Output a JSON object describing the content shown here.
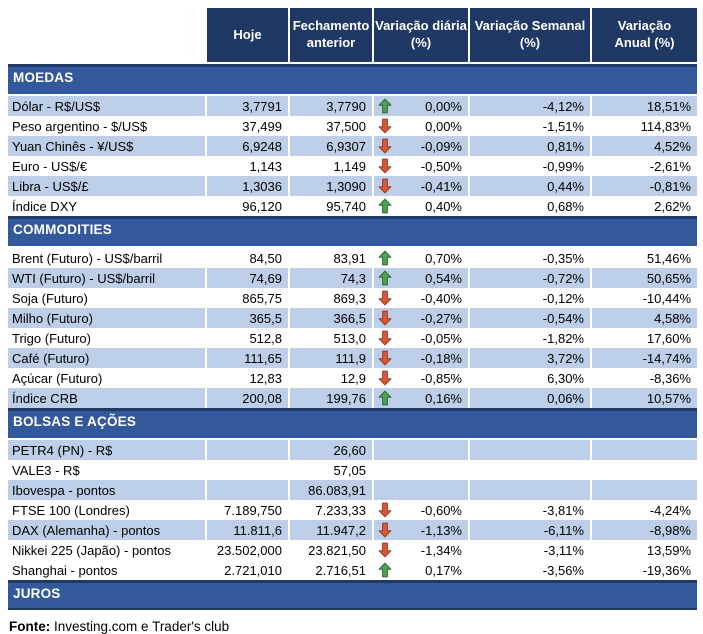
{
  "colors": {
    "header_bg": "#1F3864",
    "section_bg": "#33589B",
    "stripe": "#BCCEE8",
    "arrow_up_fill": "#4EA053",
    "arrow_up_stroke": "#2F6B35",
    "arrow_down_fill": "#D6573C",
    "arrow_down_stroke": "#9C3A20"
  },
  "header": {
    "columns": [
      {
        "line1": "Hoje",
        "line2": ""
      },
      {
        "line1": "Fechamento",
        "line2": "anterior"
      },
      {
        "line1": "Variação diária",
        "line2": "(%)"
      },
      {
        "line1": "Variação Semanal",
        "line2": "(%)"
      },
      {
        "line1": "Variação",
        "line2": "Anual (%)"
      }
    ]
  },
  "sections": [
    {
      "title": "MOEDAS",
      "rows": [
        {
          "label": "Dólar - R$/US$",
          "hoje": "3,7791",
          "fechamento": "3,7790",
          "arrow": "up",
          "diaria": "0,00%",
          "semanal": "-4,12%",
          "anual": "18,51%",
          "striped": true
        },
        {
          "label": "Peso argentino - $/US$",
          "hoje": "37,499",
          "fechamento": "37,500",
          "arrow": "down",
          "diaria": "0,00%",
          "semanal": "-1,51%",
          "anual": "114,83%",
          "striped": false
        },
        {
          "label": "Yuan Chinês - ¥/US$",
          "hoje": "6,9248",
          "fechamento": "6,9307",
          "arrow": "down",
          "diaria": "-0,09%",
          "semanal": "0,81%",
          "anual": "4,52%",
          "striped": true
        },
        {
          "label": "Euro - US$/€",
          "hoje": "1,143",
          "fechamento": "1,149",
          "arrow": "down",
          "diaria": "-0,50%",
          "semanal": "-0,99%",
          "anual": "-2,61%",
          "striped": false
        },
        {
          "label": "Libra - US$/£",
          "hoje": "1,3036",
          "fechamento": "1,3090",
          "arrow": "down",
          "diaria": "-0,41%",
          "semanal": "0,44%",
          "anual": "-0,81%",
          "striped": true
        },
        {
          "label": "Índice DXY",
          "hoje": "96,120",
          "fechamento": "95,740",
          "arrow": "up",
          "diaria": "0,40%",
          "semanal": "0,68%",
          "anual": "2,62%",
          "striped": false
        }
      ]
    },
    {
      "title": "COMMODITIES",
      "rows": [
        {
          "label": "Brent (Futuro) - US$/barril",
          "hoje": "84,50",
          "fechamento": "83,91",
          "arrow": "up",
          "diaria": "0,70%",
          "semanal": "-0,35%",
          "anual": "51,46%",
          "striped": false
        },
        {
          "label": "WTI (Futuro) - US$/barril",
          "hoje": "74,69",
          "fechamento": "74,3",
          "arrow": "up",
          "diaria": "0,54%",
          "semanal": "-0,72%",
          "anual": "50,65%",
          "striped": true
        },
        {
          "label": "Soja (Futuro)",
          "hoje": "865,75",
          "fechamento": "869,3",
          "arrow": "down",
          "diaria": "-0,40%",
          "semanal": "-0,12%",
          "anual": "-10,44%",
          "striped": false
        },
        {
          "label": "Milho (Futuro)",
          "hoje": "365,5",
          "fechamento": "366,5",
          "arrow": "down",
          "diaria": "-0,27%",
          "semanal": "-0,54%",
          "anual": "4,58%",
          "striped": true
        },
        {
          "label": "Trigo (Futuro)",
          "hoje": "512,8",
          "fechamento": "513,0",
          "arrow": "down",
          "diaria": "-0,05%",
          "semanal": "-1,82%",
          "anual": "17,60%",
          "striped": false
        },
        {
          "label": "Café (Futuro)",
          "hoje": "111,65",
          "fechamento": "111,9",
          "arrow": "down",
          "diaria": "-0,18%",
          "semanal": "3,72%",
          "anual": "-14,74%",
          "striped": true
        },
        {
          "label": "Açúcar (Futuro)",
          "hoje": "12,83",
          "fechamento": "12,9",
          "arrow": "down",
          "diaria": "-0,85%",
          "semanal": "6,30%",
          "anual": "-8,36%",
          "striped": false
        },
        {
          "label": "Índice CRB",
          "hoje": "200,08",
          "fechamento": "199,76",
          "arrow": "up",
          "diaria": "0,16%",
          "semanal": "0,06%",
          "anual": "10,57%",
          "striped": true
        }
      ]
    },
    {
      "title": "BOLSAS E AÇÕES",
      "rows": [
        {
          "label": "PETR4 (PN) - R$",
          "hoje": "",
          "fechamento": "26,60",
          "arrow": null,
          "diaria": "",
          "semanal": "",
          "anual": "",
          "striped": true
        },
        {
          "label": "VALE3 - R$",
          "hoje": "",
          "fechamento": "57,05",
          "arrow": null,
          "diaria": "",
          "semanal": "",
          "anual": "",
          "striped": false
        },
        {
          "label": "Ibovespa - pontos",
          "hoje": "",
          "fechamento": "86.083,91",
          "arrow": null,
          "diaria": "",
          "semanal": "",
          "anual": "",
          "striped": true
        },
        {
          "label": "FTSE 100 (Londres)",
          "hoje": "7.189,750",
          "fechamento": "7.233,33",
          "arrow": "down",
          "diaria": "-0,60%",
          "semanal": "-3,81%",
          "anual": "-4,24%",
          "striped": false
        },
        {
          "label": "DAX (Alemanha) - pontos",
          "hoje": "11.811,6",
          "fechamento": "11.947,2",
          "arrow": "down",
          "diaria": "-1,13%",
          "semanal": "-6,11%",
          "anual": "-8,98%",
          "striped": true
        },
        {
          "label": "Nikkei 225 (Japão) - pontos",
          "hoje": "23.502,000",
          "fechamento": "23.821,50",
          "arrow": "down",
          "diaria": "-1,34%",
          "semanal": "-3,11%",
          "anual": "13,59%",
          "striped": false
        },
        {
          "label": "Shanghai - pontos",
          "hoje": "2.721,010",
          "fechamento": "2.716,51",
          "arrow": "up",
          "diaria": "0,17%",
          "semanal": "-3,56%",
          "anual": "-19,36%",
          "striped": false
        }
      ]
    },
    {
      "title": "JUROS",
      "rows": []
    }
  ],
  "footer": {
    "label": "Fonte:",
    "text": "Investing.com e Trader's club"
  }
}
